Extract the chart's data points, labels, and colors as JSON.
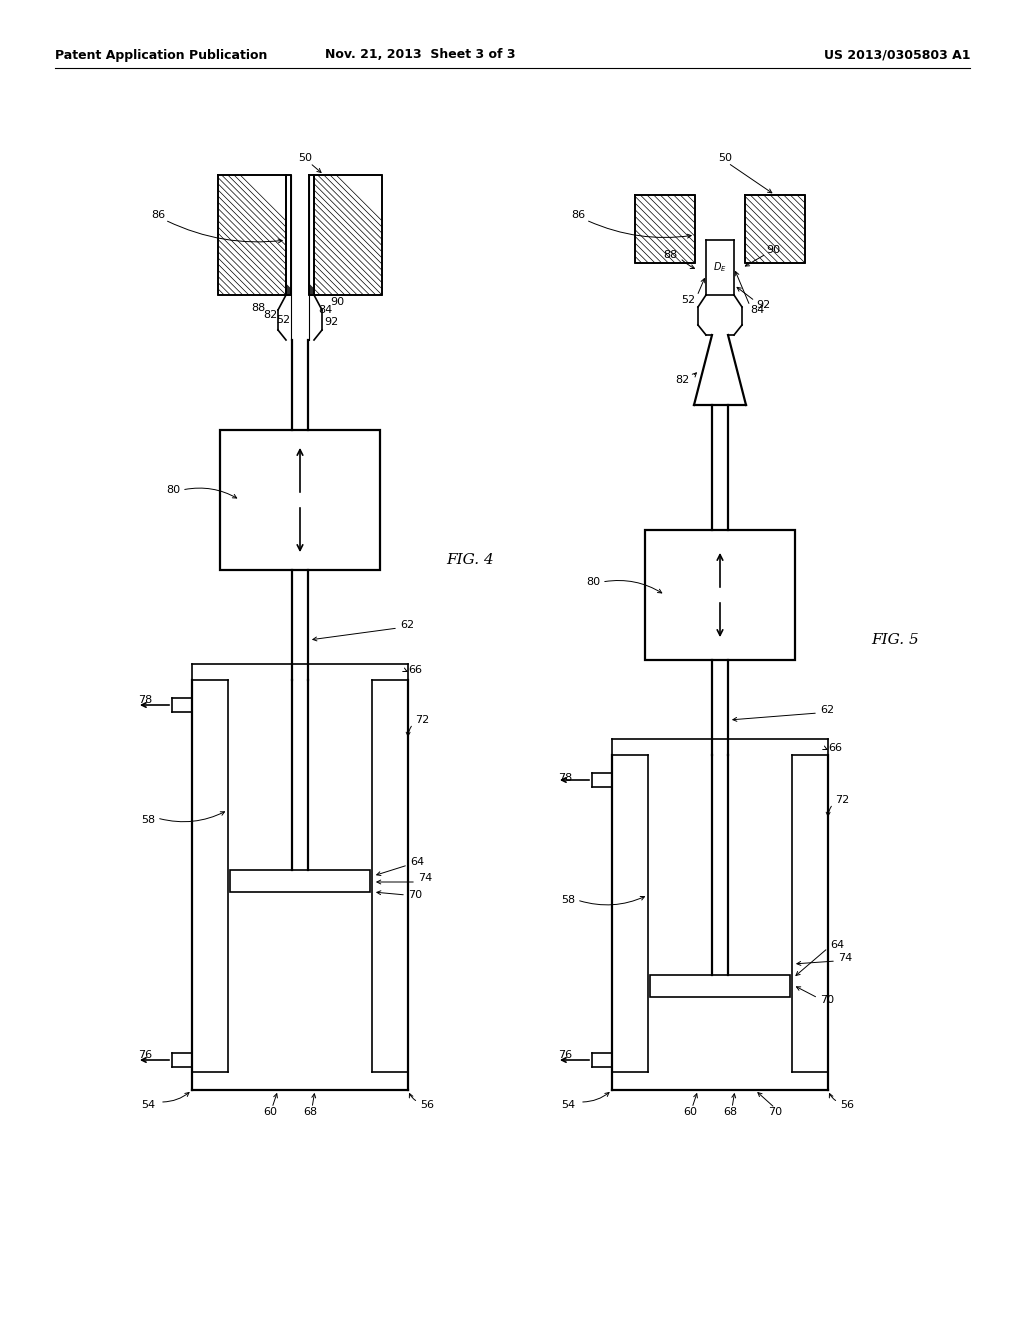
{
  "header_left": "Patent Application Publication",
  "header_mid": "Nov. 21, 2013  Sheet 3 of 3",
  "header_right": "US 2013/0305803 A1",
  "fig4_label": "FIG. 4",
  "fig5_label": "FIG. 5",
  "bg_color": "#ffffff",
  "line_color": "#000000"
}
